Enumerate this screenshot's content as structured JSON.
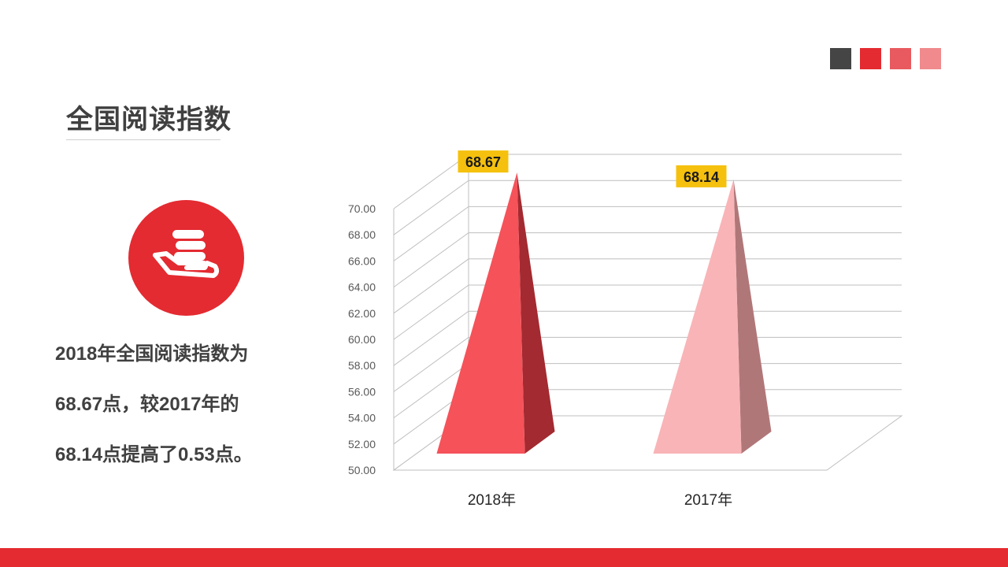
{
  "title": "全国阅读指数",
  "description": [
    "2018年全国阅读指数为",
    "68.67点，较2017年的",
    "68.14点提高了0.53点。"
  ],
  "decor_colors": [
    "#454545",
    "#e32b31",
    "#e85a5f",
    "#f08a8d"
  ],
  "icon": "hand-coins-icon",
  "chart_data": {
    "type": "bar",
    "style": "3d-pyramid",
    "categories": [
      "2018年",
      "2017年"
    ],
    "values": [
      68.67,
      68.14
    ],
    "value_labels": [
      "68.67",
      "68.14"
    ],
    "yticks": [
      "50.00",
      "52.00",
      "54.00",
      "56.00",
      "58.00",
      "60.00",
      "62.00",
      "64.00",
      "66.00",
      "68.00",
      "70.00"
    ],
    "ylim": [
      50,
      70
    ],
    "grid": true,
    "colors": [
      "#f5525a",
      "#f9b4b7"
    ],
    "label_bg": "#f5c10e"
  }
}
